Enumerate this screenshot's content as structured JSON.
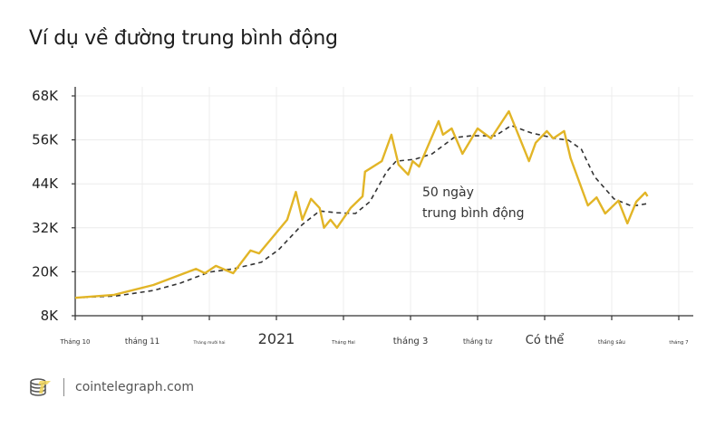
{
  "title": "Ví dụ về đường trung bình động",
  "footer": {
    "logo_text": "cointelegraph",
    "site": "cointelegraph.com"
  },
  "colors": {
    "price": "#E2B527",
    "moving_average": "#333333",
    "grid": "#ececec",
    "axis": "#333333"
  },
  "chart_data": {
    "type": "line",
    "title": "Ví dụ về đường trung bình động",
    "xlabel": "",
    "ylabel": "",
    "ylim": [
      8000,
      68000
    ],
    "yticks": [
      "8K",
      "20K",
      "32K",
      "44K",
      "56K",
      "68K"
    ],
    "ytick_values": [
      8000,
      20000,
      32000,
      44000,
      56000,
      68000
    ],
    "xlim": [
      "2020-10-01",
      "2021-07-01"
    ],
    "xticks": [
      "Tháng 10",
      "tháng 11",
      "Tháng mười hai",
      "2021",
      "Tháng Hai",
      "tháng 3",
      "tháng tư",
      "Có thể",
      "tháng sáu",
      "tháng 7"
    ],
    "grid": true,
    "annotation": {
      "line1": "50 ngày",
      "line2": "trung bình động"
    },
    "series": [
      {
        "style": "solid",
        "points": [
          [
            "2020-10-01",
            12900
          ],
          [
            "2020-10-19",
            13700
          ],
          [
            "2020-11-06",
            16400
          ],
          [
            "2020-11-25",
            20800
          ],
          [
            "2020-11-29",
            19600
          ],
          [
            "2020-12-04",
            21600
          ],
          [
            "2020-12-12",
            19600
          ],
          [
            "2020-12-20",
            25800
          ],
          [
            "2020-12-24",
            25000
          ],
          [
            "2021-01-06",
            34200
          ],
          [
            "2021-01-10",
            41800
          ],
          [
            "2021-01-13",
            34200
          ],
          [
            "2021-01-17",
            39900
          ],
          [
            "2021-01-21",
            37400
          ],
          [
            "2021-01-23",
            32000
          ],
          [
            "2021-01-26",
            34200
          ],
          [
            "2021-01-29",
            32000
          ],
          [
            "2021-02-04",
            37400
          ],
          [
            "2021-02-09",
            40600
          ],
          [
            "2021-02-10",
            47300
          ],
          [
            "2021-02-17",
            50200
          ],
          [
            "2021-02-21",
            57400
          ],
          [
            "2021-02-24",
            49200
          ],
          [
            "2021-02-28",
            46500
          ],
          [
            "2021-03-02",
            50200
          ],
          [
            "2021-03-05",
            48700
          ],
          [
            "2021-03-14",
            61100
          ],
          [
            "2021-03-16",
            57400
          ],
          [
            "2021-03-20",
            59100
          ],
          [
            "2021-03-25",
            52200
          ],
          [
            "2021-04-01",
            59100
          ],
          [
            "2021-04-07",
            56400
          ],
          [
            "2021-04-15",
            63800
          ],
          [
            "2021-04-24",
            50200
          ],
          [
            "2021-04-27",
            55200
          ],
          [
            "2021-05-02",
            58400
          ],
          [
            "2021-05-05",
            56400
          ],
          [
            "2021-05-10",
            58400
          ],
          [
            "2021-05-13",
            51000
          ],
          [
            "2021-05-21",
            38100
          ],
          [
            "2021-05-25",
            40300
          ],
          [
            "2021-05-29",
            35900
          ],
          [
            "2021-06-04",
            39400
          ],
          [
            "2021-06-08",
            33200
          ],
          [
            "2021-06-12",
            39100
          ],
          [
            "2021-06-16",
            41600
          ],
          [
            "2021-06-17",
            40600
          ]
        ]
      },
      {
        "name": "50 ngày trung bình động",
        "style": "dashed",
        "points": [
          [
            "2020-10-01",
            12900
          ],
          [
            "2020-10-20",
            13400
          ],
          [
            "2020-11-06",
            14900
          ],
          [
            "2020-11-18",
            16900
          ],
          [
            "2020-12-01",
            19900
          ],
          [
            "2020-12-12",
            20800
          ],
          [
            "2020-12-25",
            22600
          ],
          [
            "2021-01-02",
            26000
          ],
          [
            "2021-01-13",
            32900
          ],
          [
            "2021-01-21",
            36600
          ],
          [
            "2021-01-29",
            36100
          ],
          [
            "2021-02-06",
            35900
          ],
          [
            "2021-02-12",
            39100
          ],
          [
            "2021-02-19",
            47300
          ],
          [
            "2021-02-23",
            50200
          ],
          [
            "2021-03-03",
            50700
          ],
          [
            "2021-03-11",
            52200
          ],
          [
            "2021-03-21",
            56600
          ],
          [
            "2021-03-29",
            57100
          ],
          [
            "2021-04-09",
            57100
          ],
          [
            "2021-04-16",
            59900
          ],
          [
            "2021-04-25",
            57900
          ],
          [
            "2021-05-06",
            56400
          ],
          [
            "2021-05-12",
            55900
          ],
          [
            "2021-05-18",
            53400
          ],
          [
            "2021-05-24",
            46000
          ],
          [
            "2021-06-02",
            39900
          ],
          [
            "2021-06-10",
            37900
          ],
          [
            "2021-06-17",
            38600
          ]
        ]
      }
    ]
  }
}
